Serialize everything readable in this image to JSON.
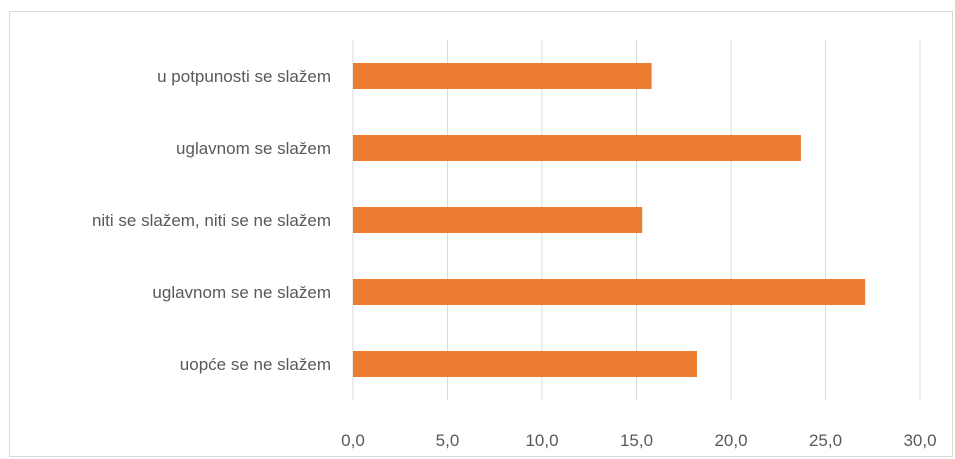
{
  "chart_data": {
    "type": "bar",
    "orientation": "horizontal",
    "categories": [
      "u potpunosti se slažem",
      "uglavnom se slažem",
      "niti se slažem, niti se ne slažem",
      "uglavnom se ne slažem",
      "uopće se ne slažem"
    ],
    "values": [
      15.8,
      23.7,
      15.3,
      27.1,
      18.2
    ],
    "xlim": [
      0,
      30
    ],
    "x_ticks": [
      "0,0",
      "5,0",
      "10,0",
      "15,0",
      "20,0",
      "25,0",
      "30,0"
    ],
    "grid": "vertical",
    "legend": "none",
    "bar_color": "#ed7d31",
    "grid_color": "#d9d9d9"
  }
}
